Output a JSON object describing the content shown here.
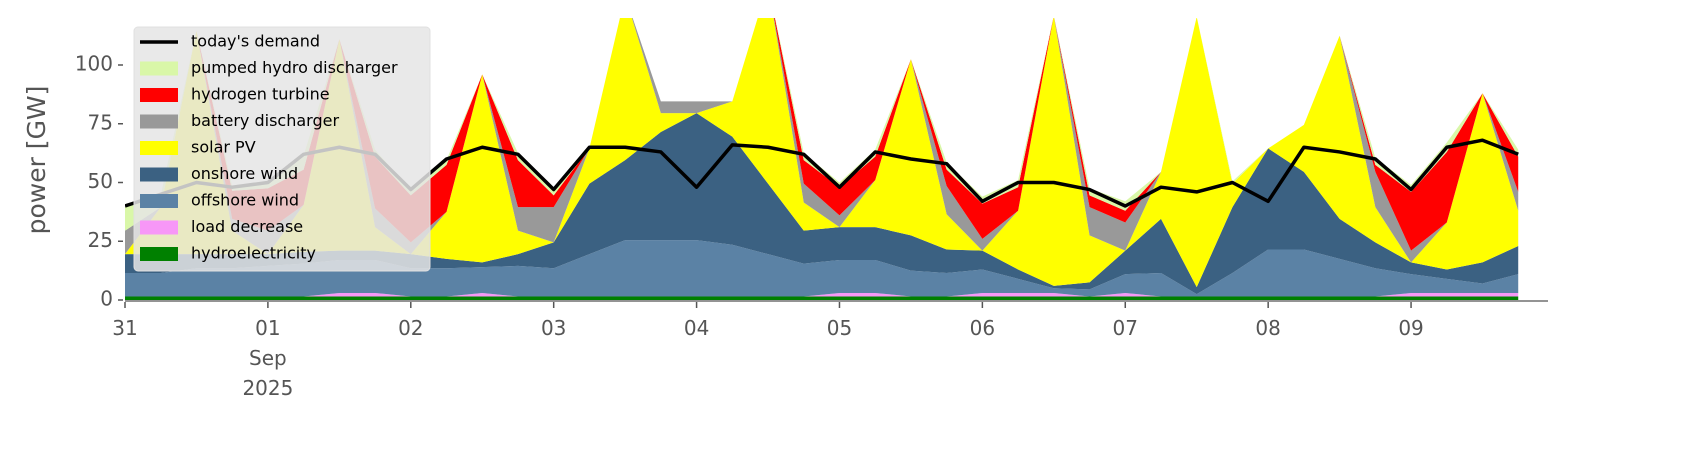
{
  "chart_data": {
    "type": "area",
    "ylabel": "power [GW]",
    "ylim": [
      0,
      120
    ],
    "yticks": [
      0,
      25,
      50,
      75,
      100
    ],
    "xlim": [
      "2025-08-31T00:00",
      "2025-09-09T23:00"
    ],
    "xticks": [
      {
        "value": "2025-08-31",
        "label": "31"
      },
      {
        "value": "2025-09-01",
        "label": "01\nSep\n2025"
      },
      {
        "value": "2025-09-02",
        "label": "02"
      },
      {
        "value": "2025-09-03",
        "label": "03"
      },
      {
        "value": "2025-09-04",
        "label": "04"
      },
      {
        "value": "2025-09-05",
        "label": "05"
      },
      {
        "value": "2025-09-06",
        "label": "06"
      },
      {
        "value": "2025-09-07",
        "label": "07"
      },
      {
        "value": "2025-09-08",
        "label": "08"
      },
      {
        "value": "2025-09-09",
        "label": "09"
      }
    ],
    "legend": "upper left",
    "x": [
      "2025-08-31T00:00",
      "2025-08-31T06:00",
      "2025-08-31T12:00",
      "2025-08-31T18:00",
      "2025-09-01T00:00",
      "2025-09-01T06:00",
      "2025-09-01T12:00",
      "2025-09-01T18:00",
      "2025-09-02T00:00",
      "2025-09-02T06:00",
      "2025-09-02T12:00",
      "2025-09-02T18:00",
      "2025-09-03T00:00",
      "2025-09-03T06:00",
      "2025-09-03T12:00",
      "2025-09-03T18:00",
      "2025-09-04T00:00",
      "2025-09-04T06:00",
      "2025-09-04T12:00",
      "2025-09-04T18:00",
      "2025-09-05T00:00",
      "2025-09-05T06:00",
      "2025-09-05T12:00",
      "2025-09-05T18:00",
      "2025-09-06T00:00",
      "2025-09-06T06:00",
      "2025-09-06T12:00",
      "2025-09-06T18:00",
      "2025-09-07T00:00",
      "2025-09-07T06:00",
      "2025-09-07T12:00",
      "2025-09-07T18:00",
      "2025-09-08T00:00",
      "2025-09-08T06:00",
      "2025-09-08T12:00",
      "2025-09-08T18:00",
      "2025-09-09T00:00",
      "2025-09-09T06:00",
      "2025-09-09T12:00",
      "2025-09-09T18:00"
    ],
    "series": [
      {
        "name": "today's demand",
        "type": "line",
        "color": "#000000",
        "values": [
          40,
          45,
          50,
          48,
          50,
          62,
          65,
          62,
          47,
          60,
          65,
          62,
          47,
          65,
          65,
          63,
          48,
          66,
          65,
          62,
          48,
          63,
          60,
          58,
          42,
          50,
          50,
          47,
          40,
          48,
          46,
          50,
          42,
          65,
          63,
          60,
          47,
          65,
          68,
          62
        ]
      },
      {
        "name": "pumped hydro discharger",
        "color": "#d9f7a8",
        "values": [
          10,
          5,
          0,
          2,
          2,
          6,
          0,
          3,
          2,
          2,
          0,
          3,
          3,
          0,
          0,
          0,
          0,
          0,
          0,
          3,
          2,
          3,
          0,
          3,
          3,
          3,
          0,
          3,
          4,
          0,
          0,
          1,
          0,
          0,
          0,
          3,
          3,
          4,
          0,
          3
        ]
      },
      {
        "name": "hydrogen turbine",
        "color": "#ff0000",
        "values": [
          0,
          0,
          0,
          12,
          18,
          15,
          0,
          22,
          20,
          20,
          0,
          20,
          5,
          0,
          0,
          0,
          0,
          0,
          0,
          10,
          12,
          10,
          0,
          7,
          15,
          10,
          0,
          5,
          5,
          0,
          0,
          0,
          0,
          0,
          0,
          3,
          25,
          30,
          0,
          15
        ]
      },
      {
        "name": "battery discharger",
        "color": "#999999",
        "values": [
          10,
          0,
          0,
          5,
          10,
          0,
          0,
          8,
          5,
          0,
          0,
          10,
          15,
          0,
          0,
          5,
          5,
          0,
          0,
          8,
          5,
          0,
          0,
          12,
          5,
          0,
          0,
          12,
          12,
          0,
          0,
          0,
          0,
          0,
          0,
          15,
          5,
          0,
          0,
          8
        ]
      },
      {
        "name": "solar PV",
        "color": "#ffff00",
        "values": [
          0,
          20,
          95,
          10,
          0,
          20,
          90,
          10,
          0,
          20,
          80,
          10,
          0,
          15,
          70,
          8,
          0,
          15,
          85,
          12,
          0,
          20,
          75,
          15,
          0,
          25,
          115,
          20,
          0,
          20,
          115,
          10,
          0,
          20,
          78,
          15,
          0,
          20,
          72,
          15
        ]
      },
      {
        "name": "onshore wind",
        "color": "#3b6182",
        "values": [
          8,
          8,
          6,
          6,
          5,
          5,
          4,
          4,
          6,
          4,
          2,
          5,
          11,
          30,
          34,
          46,
          54,
          46,
          30,
          14,
          14,
          14,
          15,
          10,
          8,
          4,
          1,
          3,
          10,
          23,
          3,
          28,
          43,
          33,
          17,
          11,
          5,
          4,
          9,
          12
        ]
      },
      {
        "name": "offshore wind",
        "color": "#5b82a5",
        "values": [
          10,
          10,
          12,
          12,
          13,
          14,
          14,
          14,
          12,
          12,
          11,
          13,
          12,
          18,
          24,
          24,
          24,
          22,
          18,
          14,
          14,
          14,
          11,
          10,
          10,
          6,
          2,
          3,
          8,
          10,
          1,
          10,
          20,
          20,
          16,
          12,
          8,
          6,
          4,
          8
        ]
      },
      {
        "name": "load decrease",
        "color": "#f797f7",
        "values": [
          0,
          0,
          0,
          0,
          0,
          0,
          1.5,
          1.5,
          0,
          0,
          1.5,
          0,
          0,
          0,
          0,
          0,
          0,
          0,
          0,
          0,
          1.5,
          1.5,
          0,
          0,
          1.5,
          1.5,
          1.5,
          0,
          1.5,
          0,
          0,
          0,
          0,
          0,
          0,
          0,
          1.5,
          1.5,
          1.5,
          1.5
        ]
      },
      {
        "name": "hydroelectricity",
        "color": "#008000",
        "values": [
          1.5,
          1.5,
          1.5,
          1.5,
          1.5,
          1.5,
          1.5,
          1.5,
          1.5,
          1.5,
          1.5,
          1.5,
          1.5,
          1.5,
          1.5,
          1.5,
          1.5,
          1.5,
          1.5,
          1.5,
          1.5,
          1.5,
          1.5,
          1.5,
          1.5,
          1.5,
          1.5,
          1.5,
          1.5,
          1.5,
          1.5,
          1.5,
          1.5,
          1.5,
          1.5,
          1.5,
          1.5,
          1.5,
          1.5,
          1.5
        ]
      }
    ]
  }
}
